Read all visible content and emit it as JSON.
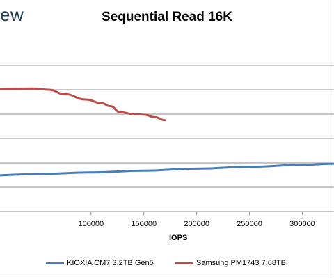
{
  "header": {
    "watermark_text": "ew"
  },
  "chart_data": {
    "type": "line",
    "title": "Sequential Read 16K",
    "xlabel": "IOPS",
    "ylabel": "",
    "xlim": [
      0,
      330000
    ],
    "ylim": [
      0,
      7
    ],
    "x_ticks": [
      100000,
      150000,
      200000,
      250000,
      300000
    ],
    "x_tick_labels": [
      "100000",
      "150000",
      "200000",
      "250000",
      "300000"
    ],
    "y_gridlines": [
      1,
      2,
      3,
      4,
      5,
      6
    ],
    "grid": true,
    "legend_placement": "bottom",
    "series": [
      {
        "name": "KIOXIA CM7 3.2TB Gen5",
        "color": "#4a7ebb",
        "points": [
          [
            0,
            1.48
          ],
          [
            50000,
            1.54
          ],
          [
            100000,
            1.61
          ],
          [
            150000,
            1.68
          ],
          [
            200000,
            1.76
          ],
          [
            250000,
            1.84
          ],
          [
            300000,
            1.92
          ],
          [
            330000,
            1.97
          ]
        ]
      },
      {
        "name": "Samsung PM1743 7.68TB",
        "color": "#be4b48",
        "points": [
          [
            0,
            5.0
          ],
          [
            20000,
            5.04
          ],
          [
            45000,
            5.05
          ],
          [
            60000,
            5.0
          ],
          [
            75000,
            4.82
          ],
          [
            95000,
            4.6
          ],
          [
            110000,
            4.45
          ],
          [
            118000,
            4.33
          ],
          [
            128000,
            4.08
          ],
          [
            140000,
            4.0
          ],
          [
            150000,
            3.98
          ],
          [
            160000,
            3.88
          ],
          [
            170000,
            3.75
          ]
        ]
      }
    ]
  }
}
